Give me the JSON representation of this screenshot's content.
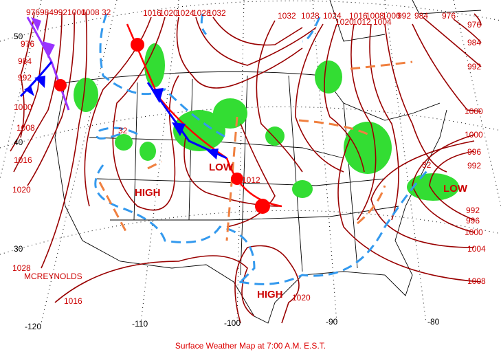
{
  "title": "Surface Weather Map at 7:00 A.M. E.S.T.",
  "station": "MCREYNOLDS",
  "pressure_systems": [
    {
      "type": "LOW"
    },
    {
      "type": "HIGH"
    },
    {
      "type": "HIGH"
    },
    {
      "type": "LOW"
    }
  ],
  "latitude_labels": [
    "50",
    "40",
    "30"
  ],
  "longitude_labels": [
    "-120",
    "-110",
    "-100",
    "-90",
    "-80"
  ],
  "isobar_labels": {
    "top_left": [
      "976",
      "984",
      "992",
      "1000",
      "1008",
      "32"
    ],
    "left": [
      "976",
      "984",
      "992",
      "1000",
      "1008",
      "1016",
      "1020",
      "1028",
      "1016"
    ],
    "top_center": [
      "1016",
      "1020",
      "1024",
      "1028",
      "1032"
    ],
    "top_right": [
      "1032",
      "1028",
      "1024",
      "1016",
      "1008",
      "1000",
      "992",
      "984",
      "976"
    ],
    "top_right_lower": [
      "1020",
      "1012",
      "1004"
    ],
    "right": [
      "976",
      "984",
      "992",
      "1000",
      "1000",
      "996",
      "992",
      "992",
      "996",
      "1000",
      "1004",
      "1008"
    ],
    "interior": [
      "1012",
      "1020"
    ],
    "freezing": [
      "32",
      "32"
    ]
  },
  "colors": {
    "isobar": "#990000",
    "label": "#cc0000",
    "precipitation": "#33dd33",
    "cold_front": "#0000ff",
    "warm_front": "#ff0000",
    "occluded_front": "#9933ff",
    "trough": "#f08040",
    "freezing_line": "#3399ee"
  }
}
